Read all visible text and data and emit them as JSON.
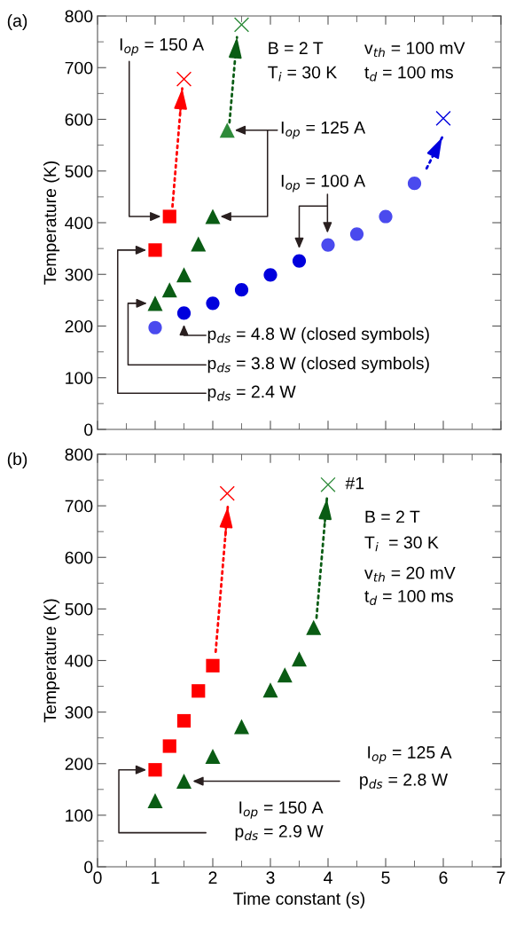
{
  "chart_data": [
    {
      "type": "scatter",
      "ylabel": "Temperature (K)",
      "xlim": [
        0,
        7
      ],
      "xticks": [
        0,
        1,
        2,
        3,
        4,
        5,
        6,
        7
      ],
      "ylim": [
        0,
        800
      ],
      "yticks": [
        0,
        100,
        200,
        300,
        400,
        500,
        600,
        700,
        800
      ],
      "tick_labels": "y",
      "series": [
        {
          "color": "#ff0000",
          "marker": "square",
          "x": [
            1,
            1.25
          ],
          "values": [
            347,
            412
          ]
        },
        {
          "type": "line",
          "color": "#ff0000",
          "line_style": "dotted",
          "x": [
            1.3,
            1.47
          ],
          "values": [
            431,
            660
          ]
        },
        {
          "color": "#ff0000",
          "marker": "cross",
          "x": [
            1.5
          ],
          "values": [
            678
          ]
        },
        {
          "color": "#0a5c14",
          "marker": "triangle",
          "x": [
            1,
            1.25,
            1.5,
            1.75,
            2
          ],
          "values": [
            244,
            270,
            299,
            359,
            412
          ]
        },
        {
          "color": "#2e8b3a",
          "marker": "triangle",
          "x": [
            2.25
          ],
          "values": [
            579
          ]
        },
        {
          "type": "line",
          "color": "#0a5c14",
          "line_style": "dotted",
          "x": [
            2.29,
            2.42
          ],
          "values": [
            594,
            759
          ]
        },
        {
          "color": "#2e8b3a",
          "marker": "cross",
          "x": [
            2.5
          ],
          "values": [
            783
          ]
        },
        {
          "color": "#0000dd",
          "marker": "circle",
          "x": [
            1.5,
            2,
            2.5,
            3,
            3.5
          ],
          "values": [
            225,
            244,
            270,
            299,
            326
          ]
        },
        {
          "color": "#4a4aee",
          "marker": "circle",
          "x": [
            1,
            4,
            4.5,
            5,
            5.5
          ],
          "values": [
            197,
            357,
            378,
            412,
            476
          ]
        },
        {
          "type": "line",
          "color": "#0000dd",
          "line_style": "dotted",
          "x": [
            5.71,
            5.98
          ],
          "values": [
            505,
            565
          ]
        },
        {
          "color": "#0000dd",
          "marker": "cross",
          "x": [
            6
          ],
          "values": [
            602
          ]
        }
      ],
      "annotations": [
        "(a)",
        "B = 2 T",
        "v$_{th}$ = 100 mV",
        "T$_{i}$ = 30 K",
        "t$_{d}$ = 100 ms",
        "I$_{op}$ = 150 A",
        "I$_{op}$ = 125 A",
        "I$_{op}$ = 100 A",
        "p$_{ds}$ = 4.8 W (closed symbols)",
        "p$_{ds}$ = 3.8 W (closed symbols)",
        "p$_{ds}$ = 2.4 W"
      ]
    },
    {
      "type": "scatter",
      "xlabel": "Time constant (s)",
      "ylabel": "Temperature (K)",
      "xlim": [
        0,
        7
      ],
      "xticks": [
        0,
        1,
        2,
        3,
        4,
        5,
        6,
        7
      ],
      "ylim": [
        0,
        800
      ],
      "yticks": [
        0,
        100,
        200,
        300,
        400,
        500,
        600,
        700,
        800
      ],
      "series": [
        {
          "color": "#ff0000",
          "marker": "square",
          "x": [
            1,
            1.25,
            1.5,
            1.75,
            2
          ],
          "values": [
            188,
            234,
            283,
            341,
            390
          ]
        },
        {
          "type": "line",
          "color": "#ff0000",
          "line_style": "dotted",
          "x": [
            2.05,
            2.26
          ],
          "values": [
            417,
            698
          ]
        },
        {
          "color": "#ff0000",
          "marker": "cross",
          "x": [
            2.25
          ],
          "values": [
            724
          ]
        },
        {
          "color": "#0a5c14",
          "marker": "triangle",
          "x": [
            1,
            1.5,
            2,
            2.5,
            3,
            3.25,
            3.5,
            3.75
          ],
          "values": [
            128,
            166,
            214,
            272,
            343,
            372,
            403,
            464
          ]
        },
        {
          "type": "line",
          "color": "#0a5c14",
          "line_style": "dotted",
          "x": [
            3.8,
            3.98
          ],
          "values": [
            483,
            714
          ]
        },
        {
          "color": "#2e8b3a",
          "marker": "cross",
          "x": [
            4
          ],
          "values": [
            741
          ]
        }
      ],
      "annotations": [
        "(b)",
        {
          "text": "#1",
          "x": 4,
          "y": 741
        },
        "B = 2 T",
        "T$_{i}$  = 30 K",
        "v$_{th}$ = 20 mV",
        "t$_{d}$ = 100 ms",
        "I$_{op}$ = 125 A",
        "p$_{ds}$ = 2.8 W",
        "I$_{op}$ = 150 A",
        "p$_{ds}$ = 2.9 W"
      ]
    }
  ]
}
